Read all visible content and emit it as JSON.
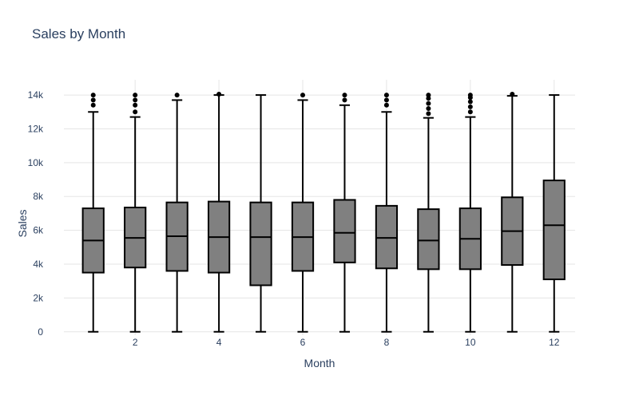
{
  "chart_data": {
    "type": "box",
    "title": "Sales by Month",
    "xlabel": "Month",
    "ylabel": "Sales",
    "x_ticks": [
      2,
      4,
      6,
      8,
      10,
      12
    ],
    "x_tick_labels": [
      "2",
      "4",
      "6",
      "8",
      "10",
      "12"
    ],
    "y_ticks": [
      0,
      2000,
      4000,
      6000,
      8000,
      10000,
      12000,
      14000
    ],
    "y_tick_labels": [
      "0",
      "2k",
      "4k",
      "6k",
      "8k",
      "10k",
      "12k",
      "14k"
    ],
    "xlim": [
      0.3,
      12.5
    ],
    "ylim": [
      -200,
      14900
    ],
    "grid": true,
    "box_fill_color": "#808080",
    "box_line_color": "#000000",
    "grid_color": "#e5e5e5",
    "text_color": "#2a3f5f",
    "boxes": [
      {
        "month": 1,
        "lower_whisker": 0,
        "q1": 3500,
        "median": 5400,
        "q3": 7300,
        "upper_whisker": 13000,
        "outliers": [
          13400,
          13700,
          14000
        ]
      },
      {
        "month": 2,
        "lower_whisker": 0,
        "q1": 3800,
        "median": 5550,
        "q3": 7350,
        "upper_whisker": 12700,
        "outliers": [
          13000,
          13400,
          13700,
          14000
        ]
      },
      {
        "month": 3,
        "lower_whisker": 0,
        "q1": 3600,
        "median": 5650,
        "q3": 7650,
        "upper_whisker": 13700,
        "outliers": [
          14000
        ]
      },
      {
        "month": 4,
        "lower_whisker": 0,
        "q1": 3500,
        "median": 5600,
        "q3": 7700,
        "upper_whisker": 14000,
        "outliers": [
          14050
        ]
      },
      {
        "month": 5,
        "lower_whisker": 0,
        "q1": 2750,
        "median": 5600,
        "q3": 7650,
        "upper_whisker": 14000,
        "outliers": []
      },
      {
        "month": 6,
        "lower_whisker": 0,
        "q1": 3600,
        "median": 5600,
        "q3": 7650,
        "upper_whisker": 13700,
        "outliers": [
          14000
        ]
      },
      {
        "month": 7,
        "lower_whisker": 0,
        "q1": 4100,
        "median": 5850,
        "q3": 7800,
        "upper_whisker": 13400,
        "outliers": [
          13700,
          14000
        ]
      },
      {
        "month": 8,
        "lower_whisker": 0,
        "q1": 3750,
        "median": 5550,
        "q3": 7450,
        "upper_whisker": 13000,
        "outliers": [
          13400,
          13700,
          14000
        ]
      },
      {
        "month": 9,
        "lower_whisker": 0,
        "q1": 3700,
        "median": 5400,
        "q3": 7250,
        "upper_whisker": 12650,
        "outliers": [
          12900,
          13200,
          13500,
          13800,
          14000
        ]
      },
      {
        "month": 10,
        "lower_whisker": 0,
        "q1": 3700,
        "median": 5500,
        "q3": 7300,
        "upper_whisker": 12700,
        "outliers": [
          13000,
          13300,
          13600,
          13850,
          14000
        ]
      },
      {
        "month": 11,
        "lower_whisker": 0,
        "q1": 3950,
        "median": 5950,
        "q3": 7950,
        "upper_whisker": 13950,
        "outliers": [
          14050
        ]
      },
      {
        "month": 12,
        "lower_whisker": 0,
        "q1": 3100,
        "median": 6300,
        "q3": 8950,
        "upper_whisker": 14000,
        "outliers": []
      }
    ]
  }
}
